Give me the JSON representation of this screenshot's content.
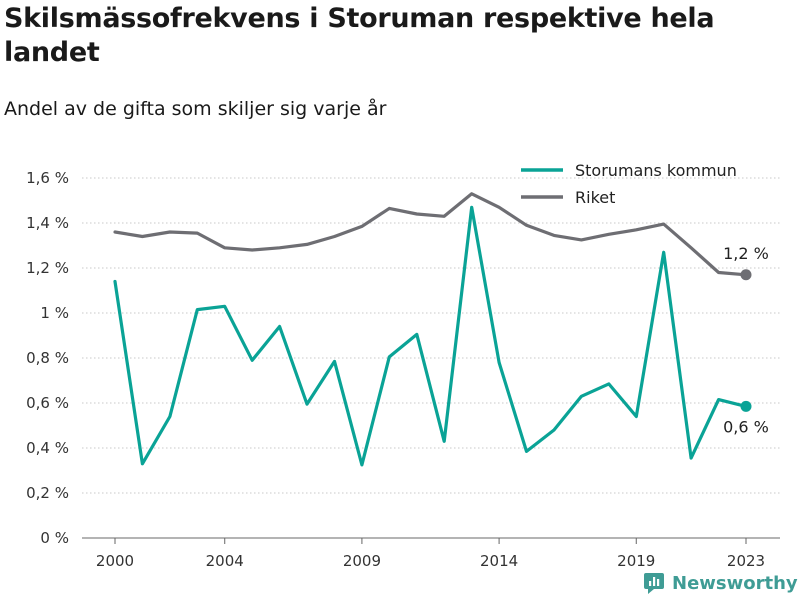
{
  "title": "Skilsmässofrekvens i Storuman respektive hela landet",
  "subtitle": "Andel av de gifta som skiljer sig varje år",
  "brand": "Newsworthy",
  "colors": {
    "storuman": "#0aa396",
    "riket": "#6e6e73",
    "grid": "#c8c8c8"
  },
  "chart_data": {
    "type": "line",
    "x": [
      2000,
      2001,
      2002,
      2003,
      2004,
      2005,
      2006,
      2007,
      2008,
      2009,
      2010,
      2011,
      2012,
      2013,
      2014,
      2015,
      2016,
      2017,
      2018,
      2019,
      2020,
      2021,
      2022,
      2023
    ],
    "series": [
      {
        "name": "Storumans kommun",
        "values": [
          1.14,
          0.33,
          0.54,
          1.015,
          1.03,
          0.79,
          0.94,
          0.595,
          0.785,
          0.325,
          0.805,
          0.905,
          0.43,
          1.47,
          0.78,
          0.385,
          0.48,
          0.63,
          0.685,
          0.54,
          1.27,
          0.355,
          0.615,
          0.585
        ]
      },
      {
        "name": "Riket",
        "values": [
          1.36,
          1.34,
          1.36,
          1.355,
          1.29,
          1.28,
          1.29,
          1.305,
          1.34,
          1.385,
          1.465,
          1.44,
          1.43,
          1.53,
          1.47,
          1.39,
          1.345,
          1.325,
          1.35,
          1.37,
          1.395,
          1.29,
          1.18,
          1.17
        ]
      }
    ],
    "ylim": [
      0,
      1.6
    ],
    "yticks": [
      "0 %",
      "0,2 %",
      "0,4 %",
      "0,6 %",
      "0,8 %",
      "1 %",
      "1,2 %",
      "1,4 %",
      "1,6 %"
    ],
    "xticks": [
      "2000",
      "2004",
      "2009",
      "2014",
      "2019",
      "2023"
    ],
    "xtick_values": [
      2000,
      2004,
      2009,
      2014,
      2019,
      2023
    ],
    "end_labels": [
      "0,6 %",
      "1,2 %"
    ],
    "legend_position": "top-right",
    "grid": true
  }
}
